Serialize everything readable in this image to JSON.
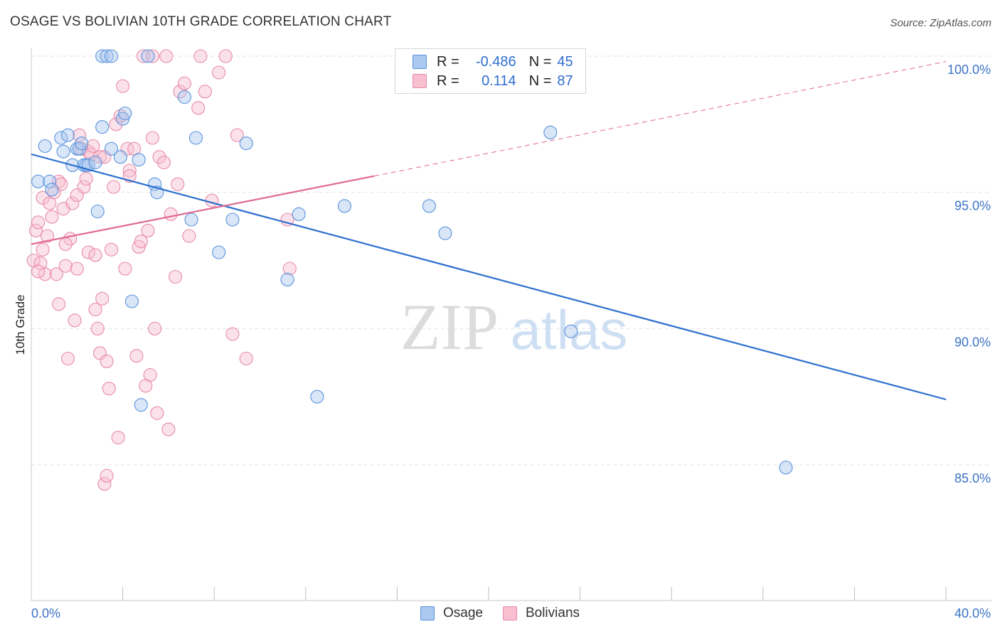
{
  "title": "OSAGE VS BOLIVIAN 10TH GRADE CORRELATION CHART",
  "source": "Source: ZipAtlas.com",
  "watermark": {
    "zip": "ZIP",
    "atlas": "atlas"
  },
  "legend": {
    "rows": [
      {
        "r_label": "R =",
        "r_value": "-0.486",
        "n_label": "N =",
        "n_value": "45"
      },
      {
        "r_label": "R =",
        "r_value": "0.114",
        "n_label": "N =",
        "n_value": "87"
      }
    ]
  },
  "bottom_legend": {
    "osage": "Osage",
    "bolivians": "Bolivians"
  },
  "colors": {
    "osage_fill": "#aac8f0",
    "osage_stroke": "#5a93dc",
    "osage_line": "#2b6fcf",
    "bol_fill": "#f7bfd0",
    "bol_stroke": "#e88aa8",
    "bol_line": "#e06a93",
    "tick_label": "#3b73c7",
    "grid": "#e2e2e2"
  },
  "chart_data": {
    "type": "scatter",
    "title": "OSAGE VS BOLIVIAN 10TH GRADE CORRELATION CHART",
    "xlabel": "",
    "ylabel": "10th Grade",
    "xlim": [
      0,
      40
    ],
    "ylim": [
      80.5,
      101
    ],
    "x_tick_labels": [
      {
        "value": 0,
        "label": "0.0%"
      },
      {
        "value": 40,
        "label": "40.0%"
      }
    ],
    "y_tick_labels": [
      {
        "value": 100,
        "label": "100.0%"
      },
      {
        "value": 95,
        "label": "95.0%"
      },
      {
        "value": 90,
        "label": "90.0%"
      },
      {
        "value": 85,
        "label": "85.0%"
      }
    ],
    "grid": true,
    "legend_position": "top-center",
    "series": [
      {
        "name": "Osage",
        "r": -0.486,
        "n": 45,
        "trend": {
          "x": [
            0,
            40
          ],
          "y": [
            96.4,
            87.4
          ]
        },
        "points": [
          [
            0.3,
            95.4
          ],
          [
            0.6,
            96.7
          ],
          [
            0.8,
            95.4
          ],
          [
            0.9,
            95.1
          ],
          [
            1.3,
            97.0
          ],
          [
            1.4,
            96.5
          ],
          [
            1.6,
            97.1
          ],
          [
            1.8,
            96.0
          ],
          [
            2.0,
            96.6
          ],
          [
            2.1,
            96.6
          ],
          [
            2.2,
            96.8
          ],
          [
            2.3,
            96.0
          ],
          [
            2.4,
            96.0
          ],
          [
            2.5,
            96.0
          ],
          [
            2.8,
            96.1
          ],
          [
            2.9,
            94.3
          ],
          [
            3.1,
            97.4
          ],
          [
            3.1,
            100.0
          ],
          [
            3.3,
            100.0
          ],
          [
            3.5,
            96.6
          ],
          [
            3.5,
            100.0
          ],
          [
            3.9,
            96.3
          ],
          [
            4.0,
            97.7
          ],
          [
            4.1,
            97.9
          ],
          [
            4.4,
            91.0
          ],
          [
            4.7,
            96.2
          ],
          [
            5.1,
            100.0
          ],
          [
            5.4,
            95.3
          ],
          [
            5.5,
            95.0
          ],
          [
            6.7,
            98.5
          ],
          [
            7.0,
            94.0
          ],
          [
            7.2,
            97.0
          ],
          [
            8.2,
            92.8
          ],
          [
            8.8,
            94.0
          ],
          [
            9.4,
            96.8
          ],
          [
            11.2,
            91.8
          ],
          [
            11.7,
            94.2
          ],
          [
            12.5,
            87.5
          ],
          [
            13.7,
            94.5
          ],
          [
            17.4,
            94.5
          ],
          [
            18.1,
            93.5
          ],
          [
            22.7,
            97.2
          ],
          [
            23.6,
            89.9
          ],
          [
            33.0,
            84.9
          ],
          [
            4.8,
            87.2
          ]
        ]
      },
      {
        "name": "Bolivians",
        "r": 0.114,
        "n": 87,
        "trend": {
          "x": [
            0,
            15
          ],
          "y": [
            93.1,
            95.6
          ]
        },
        "trend_extension": {
          "x": [
            15,
            40
          ],
          "y": [
            95.6,
            99.8
          ]
        },
        "points": [
          [
            0.1,
            92.5
          ],
          [
            0.2,
            93.6
          ],
          [
            0.3,
            93.9
          ],
          [
            0.4,
            92.4
          ],
          [
            0.5,
            94.8
          ],
          [
            0.5,
            92.9
          ],
          [
            0.6,
            92.0
          ],
          [
            0.7,
            93.4
          ],
          [
            0.8,
            94.6
          ],
          [
            0.9,
            94.1
          ],
          [
            1.0,
            95.0
          ],
          [
            1.1,
            92.0
          ],
          [
            1.2,
            95.4
          ],
          [
            1.2,
            90.9
          ],
          [
            1.3,
            95.3
          ],
          [
            1.4,
            94.4
          ],
          [
            1.5,
            92.3
          ],
          [
            1.6,
            88.9
          ],
          [
            1.7,
            93.3
          ],
          [
            1.8,
            94.6
          ],
          [
            1.9,
            90.3
          ],
          [
            2.0,
            92.2
          ],
          [
            2.1,
            97.1
          ],
          [
            2.2,
            96.6
          ],
          [
            2.3,
            95.2
          ],
          [
            2.4,
            95.5
          ],
          [
            2.5,
            92.8
          ],
          [
            2.5,
            96.5
          ],
          [
            2.6,
            96.4
          ],
          [
            2.7,
            96.7
          ],
          [
            2.8,
            92.7
          ],
          [
            2.8,
            90.7
          ],
          [
            2.9,
            90.0
          ],
          [
            3.0,
            96.3
          ],
          [
            3.0,
            89.1
          ],
          [
            3.1,
            91.1
          ],
          [
            3.2,
            84.3
          ],
          [
            3.3,
            88.8
          ],
          [
            3.3,
            84.6
          ],
          [
            3.4,
            87.8
          ],
          [
            3.5,
            92.9
          ],
          [
            3.6,
            95.2
          ],
          [
            3.7,
            97.5
          ],
          [
            3.8,
            86.0
          ],
          [
            3.9,
            97.8
          ],
          [
            4.0,
            98.9
          ],
          [
            4.1,
            92.2
          ],
          [
            4.2,
            96.6
          ],
          [
            4.3,
            95.8
          ],
          [
            4.3,
            95.6
          ],
          [
            4.5,
            96.6
          ],
          [
            4.6,
            89.0
          ],
          [
            4.7,
            93.0
          ],
          [
            4.8,
            93.2
          ],
          [
            4.9,
            100.0
          ],
          [
            5.0,
            87.9
          ],
          [
            5.1,
            93.6
          ],
          [
            5.2,
            88.3
          ],
          [
            5.3,
            97.0
          ],
          [
            5.4,
            90.0
          ],
          [
            5.5,
            86.9
          ],
          [
            5.6,
            96.3
          ],
          [
            5.8,
            96.1
          ],
          [
            5.9,
            100.0
          ],
          [
            6.0,
            86.3
          ],
          [
            6.1,
            94.2
          ],
          [
            6.3,
            91.9
          ],
          [
            6.4,
            95.3
          ],
          [
            6.5,
            98.7
          ],
          [
            6.7,
            99.0
          ],
          [
            6.9,
            93.4
          ],
          [
            7.3,
            98.1
          ],
          [
            7.4,
            100.0
          ],
          [
            7.6,
            98.7
          ],
          [
            7.9,
            94.7
          ],
          [
            8.2,
            99.4
          ],
          [
            8.5,
            100.0
          ],
          [
            8.8,
            89.8
          ],
          [
            9.0,
            97.1
          ],
          [
            9.4,
            88.9
          ],
          [
            11.2,
            94.0
          ],
          [
            11.3,
            92.2
          ],
          [
            5.3,
            100.0
          ],
          [
            3.2,
            96.3
          ],
          [
            2.0,
            94.9
          ],
          [
            1.5,
            93.1
          ],
          [
            0.3,
            92.1
          ]
        ]
      }
    ]
  }
}
